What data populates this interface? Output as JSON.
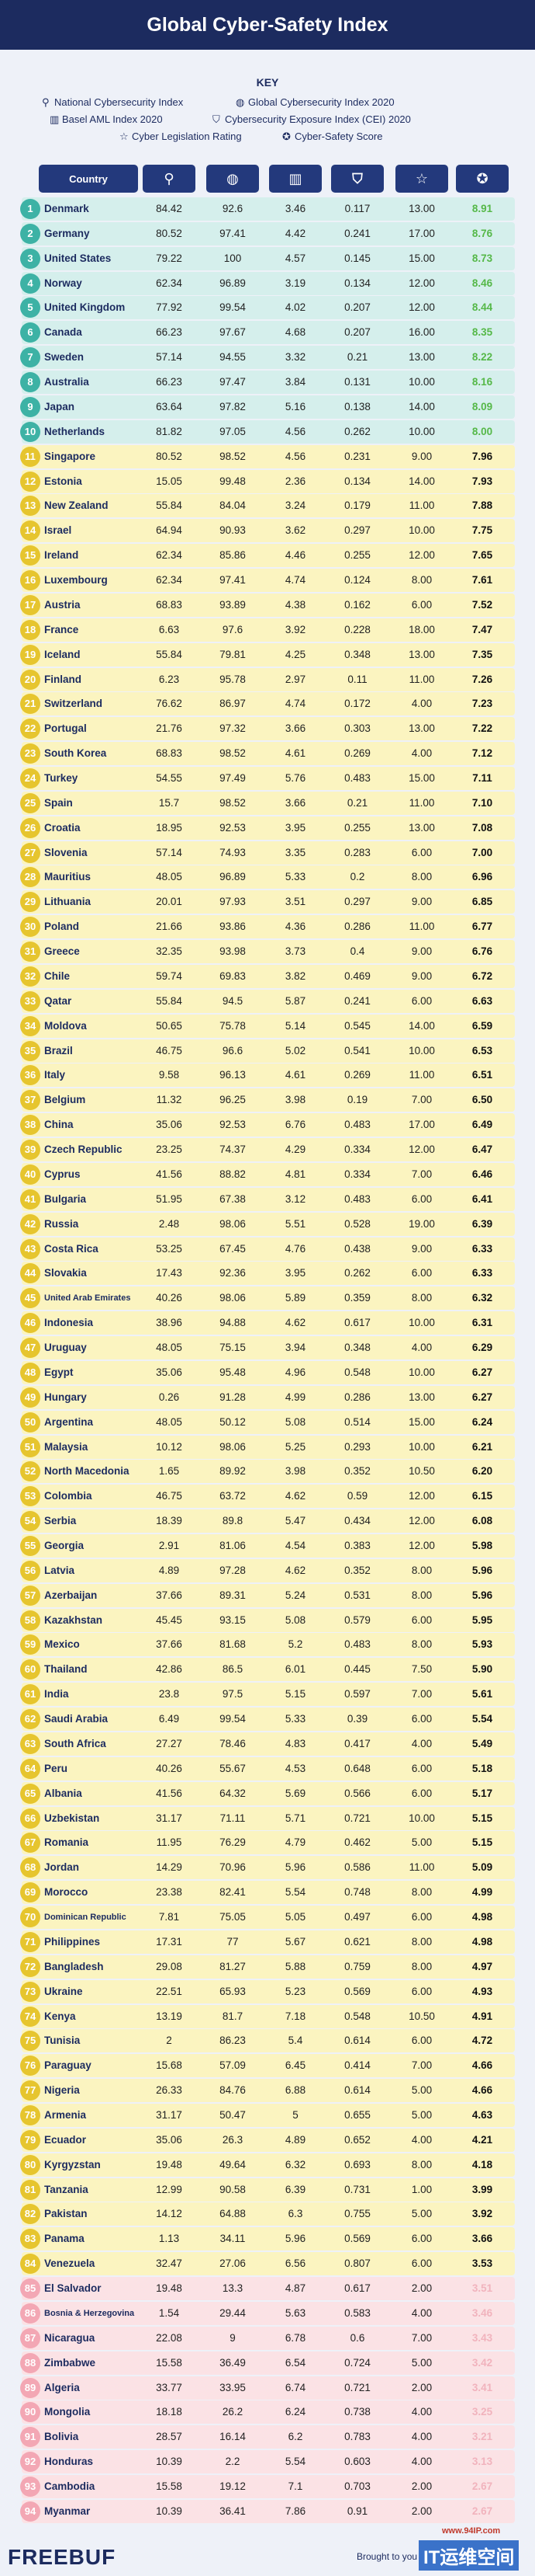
{
  "title": "Global Cyber-Safety Index",
  "key": {
    "heading": "KEY",
    "items": [
      "National Cybersecurity Index",
      "Global Cybersecurity Index 2020",
      "Basel AML Index 2020",
      "Cybersecurity Exposure Index (CEI) 2020",
      "Cyber Legislation Rating",
      "Cyber-Safety Score"
    ]
  },
  "table": {
    "header": "Country",
    "rows": [
      [
        "1",
        "Denmark",
        "84.42",
        "92.6",
        "3.46",
        "0.117",
        "13.00",
        "8.91"
      ],
      [
        "2",
        "Germany",
        "80.52",
        "97.41",
        "4.42",
        "0.241",
        "17.00",
        "8.76"
      ],
      [
        "3",
        "United States",
        "79.22",
        "100",
        "4.57",
        "0.145",
        "15.00",
        "8.73"
      ],
      [
        "4",
        "Norway",
        "62.34",
        "96.89",
        "3.19",
        "0.134",
        "12.00",
        "8.46"
      ],
      [
        "5",
        "United Kingdom",
        "77.92",
        "99.54",
        "4.02",
        "0.207",
        "12.00",
        "8.44"
      ],
      [
        "6",
        "Canada",
        "66.23",
        "97.67",
        "4.68",
        "0.207",
        "16.00",
        "8.35"
      ],
      [
        "7",
        "Sweden",
        "57.14",
        "94.55",
        "3.32",
        "0.21",
        "13.00",
        "8.22"
      ],
      [
        "8",
        "Australia",
        "66.23",
        "97.47",
        "3.84",
        "0.131",
        "10.00",
        "8.16"
      ],
      [
        "9",
        "Japan",
        "63.64",
        "97.82",
        "5.16",
        "0.138",
        "14.00",
        "8.09"
      ],
      [
        "10",
        "Netherlands",
        "81.82",
        "97.05",
        "4.56",
        "0.262",
        "10.00",
        "8.00"
      ],
      [
        "11",
        "Singapore",
        "80.52",
        "98.52",
        "4.56",
        "0.231",
        "9.00",
        "7.96"
      ],
      [
        "12",
        "Estonia",
        "15.05",
        "99.48",
        "2.36",
        "0.134",
        "14.00",
        "7.93"
      ],
      [
        "13",
        "New Zealand",
        "55.84",
        "84.04",
        "3.24",
        "0.179",
        "11.00",
        "7.88"
      ],
      [
        "14",
        "Israel",
        "64.94",
        "90.93",
        "3.62",
        "0.297",
        "10.00",
        "7.75"
      ],
      [
        "15",
        "Ireland",
        "62.34",
        "85.86",
        "4.46",
        "0.255",
        "12.00",
        "7.65"
      ],
      [
        "16",
        "Luxembourg",
        "62.34",
        "97.41",
        "4.74",
        "0.124",
        "8.00",
        "7.61"
      ],
      [
        "17",
        "Austria",
        "68.83",
        "93.89",
        "4.38",
        "0.162",
        "6.00",
        "7.52"
      ],
      [
        "18",
        "France",
        "6.63",
        "97.6",
        "3.92",
        "0.228",
        "18.00",
        "7.47"
      ],
      [
        "19",
        "Iceland",
        "55.84",
        "79.81",
        "4.25",
        "0.348",
        "13.00",
        "7.35"
      ],
      [
        "20",
        "Finland",
        "6.23",
        "95.78",
        "2.97",
        "0.11",
        "11.00",
        "7.26"
      ],
      [
        "21",
        "Switzerland",
        "76.62",
        "86.97",
        "4.74",
        "0.172",
        "4.00",
        "7.23"
      ],
      [
        "22",
        "Portugal",
        "21.76",
        "97.32",
        "3.66",
        "0.303",
        "13.00",
        "7.22"
      ],
      [
        "23",
        "South Korea",
        "68.83",
        "98.52",
        "4.61",
        "0.269",
        "4.00",
        "7.12"
      ],
      [
        "24",
        "Turkey",
        "54.55",
        "97.49",
        "5.76",
        "0.483",
        "15.00",
        "7.11"
      ],
      [
        "25",
        "Spain",
        "15.7",
        "98.52",
        "3.66",
        "0.21",
        "11.00",
        "7.10"
      ],
      [
        "26",
        "Croatia",
        "18.95",
        "92.53",
        "3.95",
        "0.255",
        "13.00",
        "7.08"
      ],
      [
        "27",
        "Slovenia",
        "57.14",
        "74.93",
        "3.35",
        "0.283",
        "6.00",
        "7.00"
      ],
      [
        "28",
        "Mauritius",
        "48.05",
        "96.89",
        "5.33",
        "0.2",
        "8.00",
        "6.96"
      ],
      [
        "29",
        "Lithuania",
        "20.01",
        "97.93",
        "3.51",
        "0.297",
        "9.00",
        "6.85"
      ],
      [
        "30",
        "Poland",
        "21.66",
        "93.86",
        "4.36",
        "0.286",
        "11.00",
        "6.77"
      ],
      [
        "31",
        "Greece",
        "32.35",
        "93.98",
        "3.73",
        "0.4",
        "9.00",
        "6.76"
      ],
      [
        "32",
        "Chile",
        "59.74",
        "69.83",
        "3.82",
        "0.469",
        "9.00",
        "6.72"
      ],
      [
        "33",
        "Qatar",
        "55.84",
        "94.5",
        "5.87",
        "0.241",
        "6.00",
        "6.63"
      ],
      [
        "34",
        "Moldova",
        "50.65",
        "75.78",
        "5.14",
        "0.545",
        "14.00",
        "6.59"
      ],
      [
        "35",
        "Brazil",
        "46.75",
        "96.6",
        "5.02",
        "0.541",
        "10.00",
        "6.53"
      ],
      [
        "36",
        "Italy",
        "9.58",
        "96.13",
        "4.61",
        "0.269",
        "11.00",
        "6.51"
      ],
      [
        "37",
        "Belgium",
        "11.32",
        "96.25",
        "3.98",
        "0.19",
        "7.00",
        "6.50"
      ],
      [
        "38",
        "China",
        "35.06",
        "92.53",
        "6.76",
        "0.483",
        "17.00",
        "6.49"
      ],
      [
        "39",
        "Czech Republic",
        "23.25",
        "74.37",
        "4.29",
        "0.334",
        "12.00",
        "6.47"
      ],
      [
        "40",
        "Cyprus",
        "41.56",
        "88.82",
        "4.81",
        "0.334",
        "7.00",
        "6.46"
      ],
      [
        "41",
        "Bulgaria",
        "51.95",
        "67.38",
        "3.12",
        "0.483",
        "6.00",
        "6.41"
      ],
      [
        "42",
        "Russia",
        "2.48",
        "98.06",
        "5.51",
        "0.528",
        "19.00",
        "6.39"
      ],
      [
        "43",
        "Costa Rica",
        "53.25",
        "67.45",
        "4.76",
        "0.438",
        "9.00",
        "6.33"
      ],
      [
        "44",
        "Slovakia",
        "17.43",
        "92.36",
        "3.95",
        "0.262",
        "6.00",
        "6.33"
      ],
      [
        "45",
        "United Arab Emirates",
        "40.26",
        "98.06",
        "5.89",
        "0.359",
        "8.00",
        "6.32"
      ],
      [
        "46",
        "Indonesia",
        "38.96",
        "94.88",
        "4.62",
        "0.617",
        "10.00",
        "6.31"
      ],
      [
        "47",
        "Uruguay",
        "48.05",
        "75.15",
        "3.94",
        "0.348",
        "4.00",
        "6.29"
      ],
      [
        "48",
        "Egypt",
        "35.06",
        "95.48",
        "4.96",
        "0.548",
        "10.00",
        "6.27"
      ],
      [
        "49",
        "Hungary",
        "0.26",
        "91.28",
        "4.99",
        "0.286",
        "13.00",
        "6.27"
      ],
      [
        "50",
        "Argentina",
        "48.05",
        "50.12",
        "5.08",
        "0.514",
        "15.00",
        "6.24"
      ],
      [
        "51",
        "Malaysia",
        "10.12",
        "98.06",
        "5.25",
        "0.293",
        "10.00",
        "6.21"
      ],
      [
        "52",
        "North Macedonia",
        "1.65",
        "89.92",
        "3.98",
        "0.352",
        "10.50",
        "6.20"
      ],
      [
        "53",
        "Colombia",
        "46.75",
        "63.72",
        "4.62",
        "0.59",
        "12.00",
        "6.15"
      ],
      [
        "54",
        "Serbia",
        "18.39",
        "89.8",
        "5.47",
        "0.434",
        "12.00",
        "6.08"
      ],
      [
        "55",
        "Georgia",
        "2.91",
        "81.06",
        "4.54",
        "0.383",
        "12.00",
        "5.98"
      ],
      [
        "56",
        "Latvia",
        "4.89",
        "97.28",
        "4.62",
        "0.352",
        "8.00",
        "5.96"
      ],
      [
        "57",
        "Azerbaijan",
        "37.66",
        "89.31",
        "5.24",
        "0.531",
        "8.00",
        "5.96"
      ],
      [
        "58",
        "Kazakhstan",
        "45.45",
        "93.15",
        "5.08",
        "0.579",
        "6.00",
        "5.95"
      ],
      [
        "59",
        "Mexico",
        "37.66",
        "81.68",
        "5.2",
        "0.483",
        "8.00",
        "5.93"
      ],
      [
        "60",
        "Thailand",
        "42.86",
        "86.5",
        "6.01",
        "0.445",
        "7.50",
        "5.90"
      ],
      [
        "61",
        "India",
        "23.8",
        "97.5",
        "5.15",
        "0.597",
        "7.00",
        "5.61"
      ],
      [
        "62",
        "Saudi Arabia",
        "6.49",
        "99.54",
        "5.33",
        "0.39",
        "6.00",
        "5.54"
      ],
      [
        "63",
        "South Africa",
        "27.27",
        "78.46",
        "4.83",
        "0.417",
        "4.00",
        "5.49"
      ],
      [
        "64",
        "Peru",
        "40.26",
        "55.67",
        "4.53",
        "0.648",
        "6.00",
        "5.18"
      ],
      [
        "65",
        "Albania",
        "41.56",
        "64.32",
        "5.69",
        "0.566",
        "6.00",
        "5.17"
      ],
      [
        "66",
        "Uzbekistan",
        "31.17",
        "71.11",
        "5.71",
        "0.721",
        "10.00",
        "5.15"
      ],
      [
        "67",
        "Romania",
        "11.95",
        "76.29",
        "4.79",
        "0.462",
        "5.00",
        "5.15"
      ],
      [
        "68",
        "Jordan",
        "14.29",
        "70.96",
        "5.96",
        "0.586",
        "11.00",
        "5.09"
      ],
      [
        "69",
        "Morocco",
        "23.38",
        "82.41",
        "5.54",
        "0.748",
        "8.00",
        "4.99"
      ],
      [
        "70",
        "Dominican Republic",
        "7.81",
        "75.05",
        "5.05",
        "0.497",
        "6.00",
        "4.98"
      ],
      [
        "71",
        "Philippines",
        "17.31",
        "77",
        "5.67",
        "0.621",
        "8.00",
        "4.98"
      ],
      [
        "72",
        "Bangladesh",
        "29.08",
        "81.27",
        "5.88",
        "0.759",
        "8.00",
        "4.97"
      ],
      [
        "73",
        "Ukraine",
        "22.51",
        "65.93",
        "5.23",
        "0.569",
        "6.00",
        "4.93"
      ],
      [
        "74",
        "Kenya",
        "13.19",
        "81.7",
        "7.18",
        "0.548",
        "10.50",
        "4.91"
      ],
      [
        "75",
        "Tunisia",
        "2",
        "86.23",
        "5.4",
        "0.614",
        "6.00",
        "4.72"
      ],
      [
        "76",
        "Paraguay",
        "15.68",
        "57.09",
        "6.45",
        "0.414",
        "7.00",
        "4.66"
      ],
      [
        "77",
        "Nigeria",
        "26.33",
        "84.76",
        "6.88",
        "0.614",
        "5.00",
        "4.66"
      ],
      [
        "78",
        "Armenia",
        "31.17",
        "50.47",
        "5",
        "0.655",
        "5.00",
        "4.63"
      ],
      [
        "79",
        "Ecuador",
        "35.06",
        "26.3",
        "4.89",
        "0.652",
        "4.00",
        "4.21"
      ],
      [
        "80",
        "Kyrgyzstan",
        "19.48",
        "49.64",
        "6.32",
        "0.693",
        "8.00",
        "4.18"
      ],
      [
        "81",
        "Tanzania",
        "12.99",
        "90.58",
        "6.39",
        "0.731",
        "1.00",
        "3.99"
      ],
      [
        "82",
        "Pakistan",
        "14.12",
        "64.88",
        "6.3",
        "0.755",
        "5.00",
        "3.92"
      ],
      [
        "83",
        "Panama",
        "1.13",
        "34.11",
        "5.96",
        "0.569",
        "6.00",
        "3.66"
      ],
      [
        "84",
        "Venezuela",
        "32.47",
        "27.06",
        "6.56",
        "0.807",
        "6.00",
        "3.53"
      ],
      [
        "85",
        "El Salvador",
        "19.48",
        "13.3",
        "4.87",
        "0.617",
        "2.00",
        "3.51"
      ],
      [
        "86",
        "Bosnia & Herzegovina",
        "1.54",
        "29.44",
        "5.63",
        "0.583",
        "4.00",
        "3.46"
      ],
      [
        "87",
        "Nicaragua",
        "22.08",
        "9",
        "6.78",
        "0.6",
        "7.00",
        "3.43"
      ],
      [
        "88",
        "Zimbabwe",
        "15.58",
        "36.49",
        "6.54",
        "0.724",
        "5.00",
        "3.42"
      ],
      [
        "89",
        "Algeria",
        "33.77",
        "33.95",
        "6.74",
        "0.721",
        "2.00",
        "3.41"
      ],
      [
        "90",
        "Mongolia",
        "18.18",
        "26.2",
        "6.24",
        "0.738",
        "4.00",
        "3.25"
      ],
      [
        "91",
        "Bolivia",
        "28.57",
        "16.14",
        "6.2",
        "0.783",
        "4.00",
        "3.21"
      ],
      [
        "92",
        "Honduras",
        "10.39",
        "2.2",
        "5.54",
        "0.603",
        "4.00",
        "3.13"
      ],
      [
        "93",
        "Cambodia",
        "15.58",
        "19.12",
        "7.1",
        "0.703",
        "2.00",
        "2.67"
      ],
      [
        "94",
        "Myanmar",
        "10.39",
        "36.41",
        "7.86",
        "0.91",
        "2.00",
        "2.67"
      ]
    ]
  },
  "footer": {
    "logo": "FREEBUF",
    "credit": "Brought to you",
    "watermark": "IT运维空间",
    "url": "www.94IP.com"
  }
}
